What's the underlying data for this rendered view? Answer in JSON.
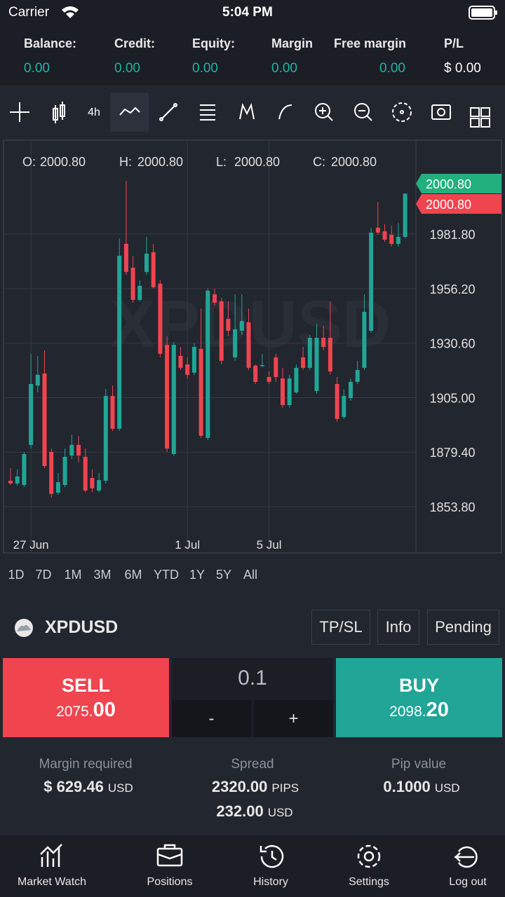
{
  "status_bar": {
    "carrier": "Carrier",
    "time": "5:04 PM"
  },
  "account": [
    {
      "label": "Balance:",
      "value": "0.00"
    },
    {
      "label": "Credit:",
      "value": "0.00"
    },
    {
      "label": "Equity:",
      "value": "0.00"
    },
    {
      "label": "Margin",
      "value": "0.00"
    },
    {
      "label": "Free margin",
      "value": "0.00"
    },
    {
      "label": "P/L",
      "value": "$ 0.00"
    }
  ],
  "toolbar": {
    "timeframe": "4h"
  },
  "chart_data": {
    "type": "candlestick",
    "watermark": "XPDUSD",
    "ohlc": [
      {
        "label": "O:",
        "value": "2000.80"
      },
      {
        "label": "H:",
        "value": "2000.80"
      },
      {
        "label": "L:",
        "value": "2000.80"
      },
      {
        "label": "C:",
        "value": "2000.80"
      }
    ],
    "price_tags": [
      {
        "value": "2000.80",
        "color": "#22b07d"
      },
      {
        "value": "2000.80",
        "color": "#f0444f"
      }
    ],
    "categories": [
      null,
      null,
      null,
      "27 Jun",
      null,
      null,
      null,
      null,
      null,
      null,
      null,
      null,
      null,
      null,
      null,
      null,
      null,
      null,
      null,
      null,
      null,
      null,
      null,
      null,
      null,
      null,
      "1 Jul",
      null,
      null,
      null,
      null,
      null,
      null,
      null,
      null,
      null,
      null,
      null,
      "5 Jul",
      null,
      null,
      null,
      null,
      null,
      null,
      null,
      null,
      null,
      null,
      null,
      null,
      null,
      null,
      null,
      null,
      null,
      null,
      null,
      null
    ],
    "open": [
      1866.0,
      1864.7,
      1864.0,
      1882.8,
      1910.7,
      1916.3,
      1879.5,
      1860.4,
      1864.0,
      1877.8,
      1882.8,
      1877.2,
      1867.3,
      1861.4,
      1866.0,
      1905.8,
      1890.4,
      1977.2,
      1966.0,
      1950.9,
      1964.0,
      1973.3,
      1958.5,
      1929.8,
      1878.5,
      1924.6,
      1920.6,
      1916.7,
      1927.9,
      1886.1,
      1953.5,
      1950.2,
      1942.0,
      1923.9,
      1936.4,
      1940.4,
      1920.0,
      1920.0,
      1914.7,
      1923.9,
      1914.0,
      1901.5,
      1907.5,
      1923.9,
      1919.0,
      1908.1,
      1933.1,
      1933.1,
      1911.4,
      1895.9,
      1904.8,
      1912.4,
      1919.0,
      1936.4,
      1984.8,
      1983.1,
      1981.5,
      1977.2,
      1980.5
    ],
    "high": [
      1871.9,
      1871.3,
      1879.5,
      1925.6,
      1924.6,
      1927.2,
      1881.1,
      1869.6,
      1881.1,
      1887.7,
      1887.1,
      1881.1,
      1871.3,
      1869.6,
      1909.1,
      1910.7,
      1979.8,
      2006.8,
      1971.6,
      1960.1,
      1980.5,
      1977.2,
      1960.1,
      1933.8,
      1931.1,
      1928.8,
      1923.9,
      1930.5,
      1946.9,
      1956.2,
      1956.2,
      1951.9,
      1950.2,
      1953.5,
      1953.5,
      1946.9,
      1920.6,
      1925.6,
      1917.3,
      1925.6,
      1919.0,
      1915.7,
      1920.6,
      1928.8,
      1934.4,
      1939.7,
      1938.7,
      1950.2,
      1914.7,
      1909.1,
      1914.0,
      1922.3,
      1953.5,
      1984.8,
      1996.9,
      1986.4,
      1985.8,
      1987.1,
      2000.9
    ],
    "low": [
      1864.0,
      1863.7,
      1863.0,
      1881.1,
      1907.5,
      1871.9,
      1858.1,
      1859.4,
      1863.0,
      1876.2,
      1874.6,
      1860.4,
      1860.7,
      1860.4,
      1864.7,
      1889.4,
      1889.4,
      1962.7,
      1949.6,
      1950.2,
      1962.7,
      1956.2,
      1923.9,
      1879.5,
      1877.8,
      1918.0,
      1914.0,
      1915.4,
      1886.1,
      1885.1,
      1948.3,
      1920.6,
      1933.8,
      1922.3,
      1934.4,
      1918.0,
      1911.4,
      1919.3,
      1911.4,
      1912.4,
      1900.2,
      1900.2,
      1906.8,
      1918.0,
      1918.0,
      1906.8,
      1927.2,
      1915.7,
      1893.6,
      1895.0,
      1903.5,
      1911.4,
      1918.0,
      1935.4,
      1981.5,
      1978.2,
      1975.9,
      1975.9,
      1979.8
    ],
    "close": [
      1864.7,
      1868.0,
      1878.5,
      1911.4,
      1915.7,
      1872.9,
      1859.8,
      1865.3,
      1877.2,
      1882.8,
      1877.8,
      1861.4,
      1862.4,
      1866.3,
      1905.8,
      1890.4,
      1971.6,
      1964.0,
      1950.9,
      1957.5,
      1972.6,
      1956.8,
      1925.6,
      1881.1,
      1929.8,
      1919.0,
      1915.7,
      1928.8,
      1887.1,
      1955.2,
      1949.6,
      1922.3,
      1936.4,
      1937.1,
      1941.0,
      1919.0,
      1912.4,
      1920.3,
      1912.4,
      1914.7,
      1901.5,
      1914.0,
      1919.0,
      1919.0,
      1933.1,
      1933.1,
      1928.8,
      1917.3,
      1895.0,
      1905.8,
      1912.4,
      1918.0,
      1945.3,
      1982.5,
      1982.5,
      1979.2,
      1977.2,
      1980.5,
      2000.8
    ],
    "up_color": "#20a596",
    "down_color": "#f0444f",
    "grid": true,
    "ylim": [
      1832.1,
      2025.9
    ],
    "yticks": [
      {
        "value": 1853.8,
        "label": "1853.80"
      },
      {
        "value": 1879.4,
        "label": "1879.40"
      },
      {
        "value": 1905.0,
        "label": "1905.00"
      },
      {
        "value": 1930.6,
        "label": "1930.60"
      },
      {
        "value": 1956.2,
        "label": "1956.20"
      },
      {
        "value": 1981.8,
        "label": "1981.80"
      }
    ]
  },
  "ranges": [
    "1D",
    "7D",
    "1M",
    "3M",
    "6M",
    "YTD",
    "1Y",
    "5Y",
    "All"
  ],
  "symbol": {
    "name": "XPDUSD",
    "buttons": [
      "TP/SL",
      "Info",
      "Pending"
    ]
  },
  "trade": {
    "sell": {
      "label": "SELL",
      "price_main": "2075.",
      "price_pips": "00"
    },
    "volume": "0.1",
    "minus": "-",
    "plus": "+",
    "buy": {
      "label": "BUY",
      "price_main": "2098.",
      "price_pips": "20"
    }
  },
  "details": {
    "margin": {
      "label": "Margin required",
      "value": "$ 629.46",
      "unit": "USD"
    },
    "spread": {
      "label": "Spread",
      "pips": "2320.00",
      "pips_unit": "PIPS",
      "value": "232.00",
      "unit": "USD"
    },
    "pip_value": {
      "label": "Pip value",
      "value": "0.1000",
      "unit": "USD"
    }
  },
  "nav": [
    "Market Watch",
    "Positions",
    "History",
    "Settings",
    "Log out"
  ]
}
